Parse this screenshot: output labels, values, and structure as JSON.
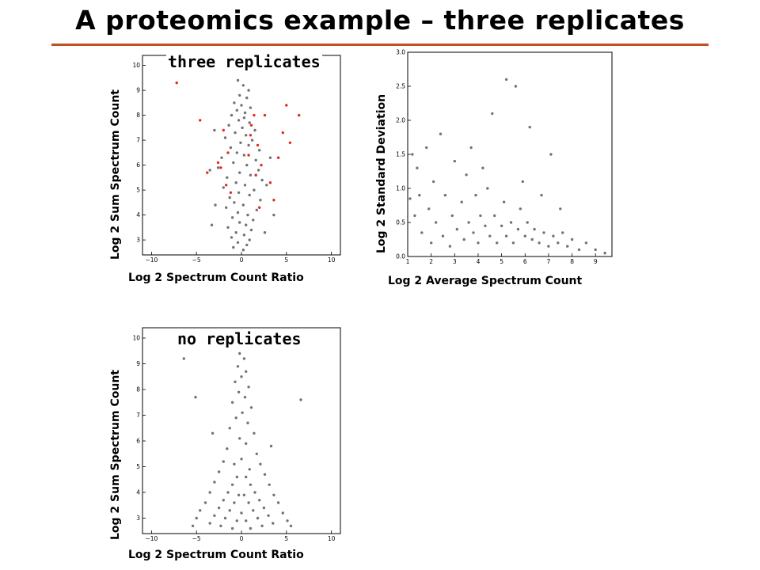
{
  "slide": {
    "title": "A proteomics example – three replicates",
    "accent_color": "#c0501f"
  },
  "panels": {
    "replicates_label": "three replicates",
    "no_replicates_label": "no replicates"
  },
  "chart_data": [
    {
      "type": "scatter",
      "id": "three-replicates",
      "title": "",
      "xlabel": "Log 2 Spectrum Count Ratio",
      "ylabel": "Log 2 Sum Spectrum Count",
      "xlim": [
        -11,
        11
      ],
      "ylim": [
        2.4,
        10.4
      ],
      "xticks": [
        -10,
        -5,
        0,
        5,
        10
      ],
      "yticks": [
        3,
        4,
        5,
        6,
        7,
        8,
        9,
        10
      ],
      "grid": false,
      "legend": "none",
      "series": [
        {
          "color": "#000000",
          "points": [
            [
              -0.4,
              9.4
            ],
            [
              0.2,
              9.2
            ],
            [
              0.8,
              9.0
            ],
            [
              -0.2,
              8.8
            ],
            [
              0.6,
              8.7
            ],
            [
              -0.8,
              8.5
            ],
            [
              0.0,
              8.4
            ],
            [
              1.0,
              8.3
            ],
            [
              -0.5,
              8.2
            ],
            [
              0.4,
              8.1
            ],
            [
              -1.1,
              8.0
            ],
            [
              0.3,
              7.9
            ],
            [
              -0.3,
              7.8
            ],
            [
              0.9,
              7.7
            ],
            [
              -1.4,
              7.6
            ],
            [
              0.1,
              7.5
            ],
            [
              1.5,
              7.4
            ],
            [
              -0.7,
              7.3
            ],
            [
              0.5,
              7.2
            ],
            [
              -1.8,
              7.1
            ],
            [
              1.2,
              7.0
            ],
            [
              -0.1,
              6.9
            ],
            [
              0.8,
              6.8
            ],
            [
              -1.2,
              6.7
            ],
            [
              2.0,
              6.6
            ],
            [
              -0.5,
              6.5
            ],
            [
              0.3,
              6.4
            ],
            [
              -2.2,
              6.3
            ],
            [
              1.6,
              6.2
            ],
            [
              -0.9,
              6.1
            ],
            [
              0.6,
              6.0
            ],
            [
              -2.6,
              5.9
            ],
            [
              1.9,
              5.8
            ],
            [
              -0.2,
              5.7
            ],
            [
              1.0,
              5.6
            ],
            [
              -1.6,
              5.5
            ],
            [
              2.3,
              5.4
            ],
            [
              -0.6,
              5.3
            ],
            [
              0.4,
              5.2
            ],
            [
              -2.0,
              5.1
            ],
            [
              1.4,
              5.0
            ],
            [
              -0.3,
              4.9
            ],
            [
              0.9,
              4.8
            ],
            [
              -1.3,
              4.7
            ],
            [
              2.1,
              4.6
            ],
            [
              -0.8,
              4.5
            ],
            [
              0.2,
              4.4
            ],
            [
              -1.7,
              4.3
            ],
            [
              1.7,
              4.2
            ],
            [
              -0.4,
              4.1
            ],
            [
              0.7,
              4.0
            ],
            [
              -1.0,
              3.9
            ],
            [
              1.3,
              3.8
            ],
            [
              -0.2,
              3.7
            ],
            [
              0.5,
              3.6
            ],
            [
              -1.5,
              3.5
            ],
            [
              1.1,
              3.4
            ],
            [
              -0.6,
              3.3
            ],
            [
              0.3,
              3.2
            ],
            [
              -1.1,
              3.1
            ],
            [
              0.9,
              3.0
            ],
            [
              -0.4,
              2.9
            ],
            [
              0.6,
              2.8
            ],
            [
              -0.9,
              2.7
            ],
            [
              0.2,
              2.6
            ],
            [
              -3.0,
              7.4
            ],
            [
              3.2,
              6.3
            ],
            [
              -3.5,
              5.8
            ],
            [
              2.8,
              5.2
            ],
            [
              -2.9,
              4.4
            ],
            [
              3.6,
              4.0
            ],
            [
              -3.3,
              3.6
            ],
            [
              2.6,
              3.3
            ]
          ]
        },
        {
          "color": "#e0201c",
          "points": [
            [
              -7.2,
              9.3
            ],
            [
              -4.6,
              7.8
            ],
            [
              -3.8,
              5.7
            ],
            [
              -2.6,
              6.1
            ],
            [
              -2.0,
              7.4
            ],
            [
              -1.7,
              5.2
            ],
            [
              -1.5,
              6.5
            ],
            [
              -1.2,
              4.9
            ],
            [
              1.0,
              7.2
            ],
            [
              1.4,
              8.0
            ],
            [
              1.8,
              6.8
            ],
            [
              2.2,
              6.0
            ],
            [
              2.6,
              8.0
            ],
            [
              3.2,
              5.3
            ],
            [
              3.6,
              4.6
            ],
            [
              4.1,
              6.3
            ],
            [
              4.6,
              7.3
            ],
            [
              5.0,
              8.4
            ],
            [
              5.4,
              6.9
            ],
            [
              6.4,
              8.0
            ],
            [
              1.1,
              7.6
            ],
            [
              1.6,
              5.6
            ],
            [
              2.0,
              4.3
            ],
            [
              0.8,
              6.4
            ],
            [
              -2.3,
              5.9
            ]
          ]
        }
      ]
    },
    {
      "type": "scatter",
      "id": "standard-deviation",
      "title": "",
      "xlabel": "Log 2 Average Spectrum Count",
      "ylabel": "Log 2 Standard Deviation",
      "xlim": [
        1,
        9.7
      ],
      "ylim": [
        0,
        3.0
      ],
      "xticks": [
        1,
        2,
        3,
        4,
        5,
        6,
        7,
        8,
        9
      ],
      "yticks": [
        0.0,
        0.5,
        1.0,
        1.5,
        2.0,
        2.5,
        3.0
      ],
      "ytick_labels": [
        "0.0",
        "0.5",
        "1.0",
        "1.5",
        "2.0",
        "2.5",
        "3.0"
      ],
      "grid": false,
      "legend": "none",
      "series": [
        {
          "color": "#000000",
          "points": [
            [
              1.1,
              0.85
            ],
            [
              1.2,
              1.5
            ],
            [
              1.3,
              0.6
            ],
            [
              1.4,
              1.3
            ],
            [
              1.5,
              0.9
            ],
            [
              1.6,
              0.35
            ],
            [
              1.8,
              1.6
            ],
            [
              1.9,
              0.7
            ],
            [
              2.0,
              0.2
            ],
            [
              2.1,
              1.1
            ],
            [
              2.2,
              0.5
            ],
            [
              2.4,
              1.8
            ],
            [
              2.5,
              0.3
            ],
            [
              2.6,
              0.9
            ],
            [
              2.8,
              0.15
            ],
            [
              2.9,
              0.6
            ],
            [
              3.0,
              1.4
            ],
            [
              3.1,
              0.4
            ],
            [
              3.3,
              0.8
            ],
            [
              3.4,
              0.25
            ],
            [
              3.5,
              1.2
            ],
            [
              3.6,
              0.5
            ],
            [
              3.8,
              0.35
            ],
            [
              3.9,
              0.9
            ],
            [
              4.0,
              0.2
            ],
            [
              4.1,
              0.6
            ],
            [
              4.3,
              0.45
            ],
            [
              4.4,
              1.0
            ],
            [
              4.5,
              0.3
            ],
            [
              4.7,
              0.6
            ],
            [
              4.8,
              0.2
            ],
            [
              5.0,
              0.45
            ],
            [
              5.1,
              0.8
            ],
            [
              5.2,
              0.3
            ],
            [
              5.4,
              0.5
            ],
            [
              5.5,
              0.2
            ],
            [
              5.7,
              0.4
            ],
            [
              5.8,
              0.7
            ],
            [
              6.0,
              0.3
            ],
            [
              6.1,
              0.5
            ],
            [
              6.3,
              0.25
            ],
            [
              6.4,
              0.4
            ],
            [
              6.6,
              0.2
            ],
            [
              6.8,
              0.35
            ],
            [
              7.0,
              0.15
            ],
            [
              7.2,
              0.3
            ],
            [
              7.4,
              0.2
            ],
            [
              7.6,
              0.35
            ],
            [
              7.8,
              0.15
            ],
            [
              8.0,
              0.25
            ],
            [
              8.3,
              0.1
            ],
            [
              8.6,
              0.2
            ],
            [
              9.0,
              0.1
            ],
            [
              9.4,
              0.05
            ],
            [
              5.2,
              2.6
            ],
            [
              5.6,
              2.5
            ],
            [
              4.6,
              2.1
            ],
            [
              6.2,
              1.9
            ],
            [
              3.7,
              1.6
            ],
            [
              7.1,
              1.5
            ],
            [
              6.7,
              0.9
            ],
            [
              4.2,
              1.3
            ],
            [
              5.9,
              1.1
            ],
            [
              7.5,
              0.7
            ]
          ]
        }
      ]
    },
    {
      "type": "scatter",
      "id": "no-replicates",
      "title": "",
      "xlabel": "Log 2 Spectrum Count Ratio",
      "ylabel": "Log 2 Sum Spectrum Count",
      "xlim": [
        -11,
        11
      ],
      "ylim": [
        2.4,
        10.4
      ],
      "xticks": [
        -10,
        -5,
        0,
        5,
        10
      ],
      "yticks": [
        3,
        4,
        5,
        6,
        7,
        8,
        9,
        10
      ],
      "grid": false,
      "legend": "none",
      "series": [
        {
          "color": "#000000",
          "points": [
            [
              -0.2,
              9.4
            ],
            [
              0.3,
              9.2
            ],
            [
              -0.4,
              8.9
            ],
            [
              0.5,
              8.7
            ],
            [
              0.0,
              8.5
            ],
            [
              -0.7,
              8.3
            ],
            [
              0.8,
              8.1
            ],
            [
              -0.3,
              7.9
            ],
            [
              0.4,
              7.7
            ],
            [
              -1.0,
              7.5
            ],
            [
              1.1,
              7.3
            ],
            [
              0.1,
              7.1
            ],
            [
              -0.6,
              6.9
            ],
            [
              0.7,
              6.7
            ],
            [
              -1.3,
              6.5
            ],
            [
              1.4,
              6.3
            ],
            [
              -0.2,
              6.1
            ],
            [
              0.5,
              5.9
            ],
            [
              -1.6,
              5.7
            ],
            [
              1.7,
              5.5
            ],
            [
              0.0,
              5.3
            ],
            [
              -0.8,
              5.1
            ],
            [
              0.9,
              4.9
            ],
            [
              -2.0,
              5.2
            ],
            [
              2.1,
              5.1
            ],
            [
              -2.5,
              4.8
            ],
            [
              2.6,
              4.7
            ],
            [
              -3.0,
              4.4
            ],
            [
              3.1,
              4.3
            ],
            [
              -3.5,
              4.0
            ],
            [
              3.6,
              3.9
            ],
            [
              -4.0,
              3.6
            ],
            [
              4.1,
              3.6
            ],
            [
              -4.6,
              3.3
            ],
            [
              4.6,
              3.2
            ],
            [
              -5.0,
              3.0
            ],
            [
              5.1,
              2.9
            ],
            [
              -5.4,
              2.7
            ],
            [
              5.5,
              2.7
            ],
            [
              -0.5,
              4.6
            ],
            [
              0.5,
              4.6
            ],
            [
              -1.0,
              4.3
            ],
            [
              1.0,
              4.3
            ],
            [
              -1.5,
              4.0
            ],
            [
              1.5,
              4.0
            ],
            [
              -2.0,
              3.7
            ],
            [
              2.0,
              3.7
            ],
            [
              -2.5,
              3.4
            ],
            [
              2.5,
              3.4
            ],
            [
              -3.0,
              3.1
            ],
            [
              3.0,
              3.1
            ],
            [
              -3.5,
              2.8
            ],
            [
              3.5,
              2.8
            ],
            [
              -0.3,
              3.9
            ],
            [
              0.3,
              3.9
            ],
            [
              -0.8,
              3.6
            ],
            [
              0.8,
              3.6
            ],
            [
              -1.3,
              3.3
            ],
            [
              1.3,
              3.3
            ],
            [
              -1.8,
              3.0
            ],
            [
              1.8,
              3.0
            ],
            [
              -2.3,
              2.7
            ],
            [
              2.3,
              2.7
            ],
            [
              0.0,
              3.2
            ],
            [
              -0.5,
              2.9
            ],
            [
              0.5,
              2.9
            ],
            [
              -1.0,
              2.6
            ],
            [
              1.0,
              2.6
            ],
            [
              -3.2,
              6.3
            ],
            [
              3.3,
              5.8
            ],
            [
              -6.4,
              9.2
            ],
            [
              6.6,
              7.6
            ],
            [
              -5.1,
              7.7
            ]
          ]
        }
      ]
    }
  ]
}
